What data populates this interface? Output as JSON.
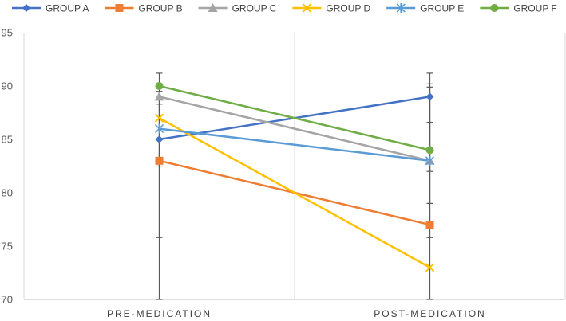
{
  "chart_data": {
    "type": "line",
    "categories": [
      "PRE-MEDICATION",
      "POST-MEDICATION"
    ],
    "ylim": [
      70,
      95
    ],
    "yticks": [
      70,
      75,
      80,
      85,
      90,
      95
    ],
    "grid": {
      "vertical": true,
      "horizontal": false
    },
    "legend_position": "top",
    "error_bars": {
      "PRE-MEDICATION": [
        [
          70,
          91.2
        ],
        [
          75.8,
          88.3
        ],
        [
          82.5,
          89.5
        ]
      ],
      "POST-MEDICATION": [
        [
          70,
          91.2
        ],
        [
          75.8,
          89.9
        ],
        [
          82.0,
          90.2
        ],
        [
          79.0,
          86.6
        ]
      ]
    },
    "series": [
      {
        "name": "GROUP A",
        "values": [
          85,
          89
        ],
        "color": "#4472C4",
        "marker": "diamond"
      },
      {
        "name": "GROUP B",
        "values": [
          83,
          77
        ],
        "color": "#ED7D31",
        "marker": "square"
      },
      {
        "name": "GROUP C",
        "values": [
          89,
          83
        ],
        "color": "#A5A5A5",
        "marker": "triangle"
      },
      {
        "name": "GROUP D",
        "values": [
          87,
          73
        ],
        "color": "#FFC000",
        "marker": "x"
      },
      {
        "name": "GROUP E",
        "values": [
          86,
          83
        ],
        "color": "#5B9BD5",
        "marker": "star"
      },
      {
        "name": "GROUP F",
        "values": [
          90,
          84
        ],
        "color": "#70AD47",
        "marker": "circle"
      }
    ]
  }
}
